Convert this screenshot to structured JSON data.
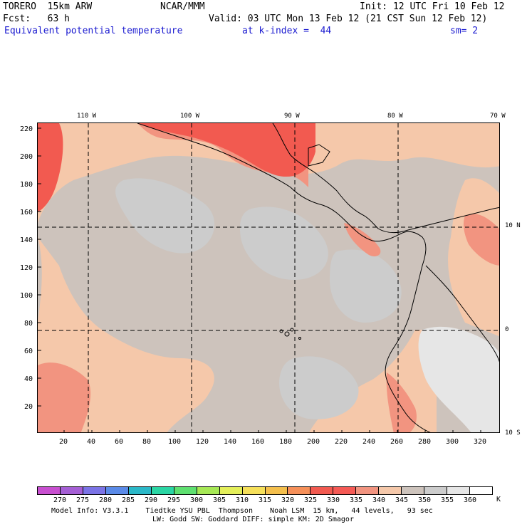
{
  "header": {
    "model": "TORERO  15km ARW",
    "org": "NCAR/MMM",
    "init": "Init: 12 UTC Fri 10 Feb 12",
    "fcst": "Fcst:   63 h",
    "valid": "Valid: 03 UTC Mon 13 Feb 12 (21 CST Sun 12 Feb 12)",
    "field": "Equivalent potential temperature",
    "level": "at k-index =  44",
    "smooth": "sm= 2"
  },
  "axes": {
    "y_ticks": [
      "220",
      "200",
      "180",
      "160",
      "140",
      "120",
      "100",
      "80",
      "60",
      "40",
      "20"
    ],
    "x_ticks": [
      "20",
      "40",
      "60",
      "80",
      "100",
      "120",
      "140",
      "160",
      "180",
      "200",
      "220",
      "240",
      "260",
      "280",
      "300",
      "320"
    ],
    "lon_labels": [
      "110 W",
      "100 W",
      "90 W",
      "80 W",
      "70 W"
    ],
    "lat_labels": [
      "10 N",
      "0",
      "10 S"
    ]
  },
  "colorbar": {
    "labels": [
      "270",
      "275",
      "280",
      "285",
      "290",
      "295",
      "300",
      "305",
      "310",
      "315",
      "320",
      "325",
      "330",
      "335",
      "340",
      "345",
      "350",
      "355",
      "360"
    ],
    "unit": "K",
    "colors": [
      "#c84fd0",
      "#a55fd5",
      "#7b73e6",
      "#5a8ae8",
      "#2ab8c8",
      "#2ad6a4",
      "#5ee070",
      "#a6e855",
      "#e4ef5a",
      "#f6e05a",
      "#f4bf4c",
      "#f69059",
      "#f25a50",
      "#f55a55",
      "#f29480",
      "#f5c8aa",
      "#cdc3bc",
      "#cccccc",
      "#e6e6e6",
      "#ffffff"
    ]
  },
  "footer": {
    "line1": "Model Info: V3.3.1    Tiedtke YSU PBL  Thompson    Noah LSM  15 km,   44 levels,   93 sec",
    "line2": "LW: Godd SW: Goddard DIFF: simple KM: 2D Smagor"
  }
}
